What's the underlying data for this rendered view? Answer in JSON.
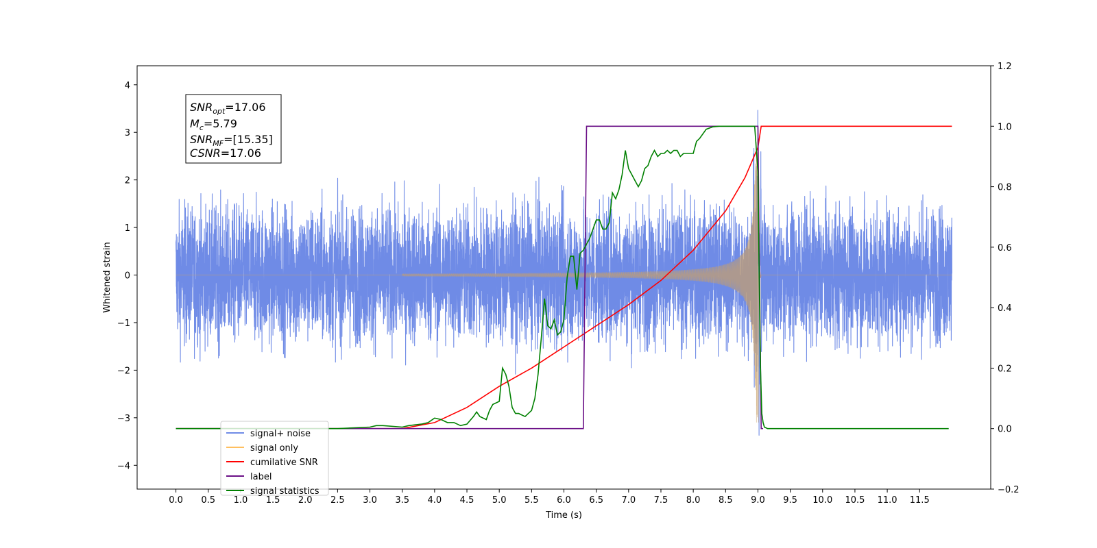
{
  "chart_data": {
    "type": "line",
    "xlabel": "Time (s)",
    "ylabel_left": "Whitened strain",
    "ylabel_right": "",
    "xlim": [
      -0.6,
      12.6
    ],
    "ylim_left": [
      -4.5,
      4.4
    ],
    "ylim_right": [
      -0.2,
      1.2
    ],
    "x_ticks": [
      0.0,
      0.5,
      1.0,
      1.5,
      2.0,
      2.5,
      3.0,
      3.5,
      4.0,
      4.5,
      5.0,
      5.5,
      6.0,
      6.5,
      7.0,
      7.5,
      8.0,
      8.5,
      9.0,
      9.5,
      10.0,
      10.5,
      11.0,
      11.5
    ],
    "x_tick_labels": [
      "0.0",
      "0.5",
      "1.0",
      "1.5",
      "2.0",
      "2.5",
      "3.0",
      "3.5",
      "4.0",
      "4.5",
      "5.0",
      "5.5",
      "6.0",
      "6.5",
      "7.0",
      "7.5",
      "8.0",
      "8.5",
      "9.0",
      "9.5",
      "10.0",
      "10.5",
      "11.0",
      "11.5"
    ],
    "y_left_ticks": [
      -4,
      -3,
      -2,
      -1,
      0,
      1,
      2,
      3,
      4
    ],
    "y_left_tick_labels": [
      "−4",
      "−3",
      "−2",
      "−1",
      "0",
      "1",
      "2",
      "3",
      "4"
    ],
    "y_right_ticks": [
      -0.2,
      0.0,
      0.2,
      0.4,
      0.6,
      0.8,
      1.0,
      1.2
    ],
    "y_right_tick_labels": [
      "−0.2",
      "0.0",
      "0.2",
      "0.4",
      "0.6",
      "0.8",
      "1.0",
      "1.2"
    ],
    "grid": false,
    "legend_position": "lower-left",
    "legend": [
      {
        "label": "signal+ noise",
        "color": "#6f8be6"
      },
      {
        "label": "signal only",
        "color": "#ffbf5f"
      },
      {
        "label": "cumilative SNR",
        "color": "#ff0000"
      },
      {
        "label": "label",
        "color": "#6a0f86"
      },
      {
        "label": "signal statistics",
        "color": "#008000"
      }
    ],
    "info_box": {
      "snr_opt": {
        "base": "SNR",
        "sub": "opt",
        "value": "=17.06"
      },
      "mc": {
        "base": "M",
        "sub": "c",
        "value": "=5.79"
      },
      "snr_mf": {
        "base": "SNR",
        "sub": "MF",
        "value": "=[15.35]"
      },
      "csnr": {
        "base": "CSNR",
        "value": "=17.06"
      }
    },
    "series": [
      {
        "name": "signal+ noise",
        "axis": "left",
        "color": "#6f8be6",
        "x_range": [
          0.0,
          12.0
        ],
        "typical_envelope": [
          -2.2,
          2.2
        ],
        "extremes": [
          -4.1,
          3.98
        ]
      },
      {
        "name": "signal only",
        "axis": "left",
        "color": "#ffbf5f",
        "chirp_start": 3.5,
        "merger": 9.0,
        "amplitude_at_merger": 3.1
      },
      {
        "name": "cumilative SNR",
        "axis": "right",
        "color": "#ff0000",
        "x": [
          0.0,
          3.5,
          4.0,
          4.5,
          5.0,
          5.5,
          6.0,
          6.5,
          7.0,
          7.5,
          8.0,
          8.5,
          8.8,
          9.0,
          9.05,
          12.0
        ],
        "y": [
          0.0,
          0.0,
          0.02,
          0.07,
          0.14,
          0.2,
          0.27,
          0.34,
          0.41,
          0.49,
          0.59,
          0.72,
          0.83,
          0.93,
          1.0,
          1.0
        ]
      },
      {
        "name": "label",
        "axis": "right",
        "color": "#6a0f86",
        "x": [
          0.0,
          6.3,
          6.35,
          9.0,
          9.05,
          9.08
        ],
        "y": [
          0.0,
          0.0,
          1.0,
          1.0,
          0.0,
          0.0
        ]
      },
      {
        "name": "signal statistics",
        "axis": "right",
        "color": "#008000",
        "x": [
          0.0,
          2.5,
          3.0,
          3.1,
          3.2,
          3.5,
          3.6,
          3.8,
          3.9,
          4.0,
          4.1,
          4.2,
          4.3,
          4.4,
          4.5,
          4.6,
          4.65,
          4.7,
          4.8,
          4.85,
          4.9,
          5.0,
          5.05,
          5.1,
          5.15,
          5.2,
          5.25,
          5.3,
          5.4,
          5.45,
          5.5,
          5.55,
          5.6,
          5.65,
          5.7,
          5.75,
          5.8,
          5.85,
          5.9,
          5.95,
          6.0,
          6.05,
          6.1,
          6.15,
          6.2,
          6.25,
          6.3,
          6.4,
          6.5,
          6.55,
          6.6,
          6.65,
          6.7,
          6.75,
          6.8,
          6.85,
          6.9,
          6.95,
          7.0,
          7.05,
          7.1,
          7.15,
          7.2,
          7.25,
          7.3,
          7.35,
          7.4,
          7.45,
          7.5,
          7.55,
          7.6,
          7.65,
          7.7,
          7.75,
          7.8,
          7.85,
          7.9,
          8.0,
          8.05,
          8.1,
          8.2,
          8.3,
          8.4,
          8.5,
          8.6,
          8.7,
          8.8,
          8.9,
          8.95,
          9.0,
          9.02,
          9.04,
          9.06,
          9.08,
          9.1,
          9.15,
          11.95
        ],
        "y": [
          0.0,
          0.0,
          0.005,
          0.01,
          0.01,
          0.005,
          0.01,
          0.015,
          0.02,
          0.035,
          0.03,
          0.02,
          0.02,
          0.01,
          0.015,
          0.04,
          0.055,
          0.04,
          0.03,
          0.06,
          0.08,
          0.09,
          0.2,
          0.18,
          0.14,
          0.07,
          0.05,
          0.05,
          0.04,
          0.05,
          0.06,
          0.1,
          0.18,
          0.3,
          0.43,
          0.34,
          0.33,
          0.36,
          0.31,
          0.32,
          0.36,
          0.5,
          0.57,
          0.57,
          0.46,
          0.58,
          0.59,
          0.63,
          0.69,
          0.69,
          0.66,
          0.66,
          0.68,
          0.78,
          0.76,
          0.79,
          0.84,
          0.92,
          0.86,
          0.84,
          0.82,
          0.8,
          0.82,
          0.86,
          0.87,
          0.9,
          0.92,
          0.9,
          0.91,
          0.91,
          0.92,
          0.91,
          0.92,
          0.92,
          0.9,
          0.91,
          0.91,
          0.91,
          0.95,
          0.96,
          0.99,
          0.998,
          1.0,
          1.0,
          1.0,
          1.0,
          1.0,
          1.0,
          1.0,
          0.85,
          0.5,
          0.2,
          0.05,
          0.02,
          0.005,
          0.0,
          0.0
        ]
      }
    ]
  }
}
